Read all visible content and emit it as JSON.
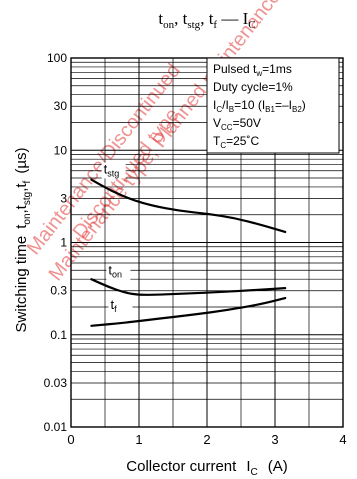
{
  "chart_data": {
    "type": "line",
    "title_parts": {
      "t": "t",
      "on": "on",
      "sep1": ", ",
      "stg": "stg",
      "sep2": ", ",
      "f": "f",
      "dash": " — I",
      "c": "C"
    },
    "xlabel_text": "Collector current",
    "xlabel_symbol": "I",
    "xlabel_sub": "C",
    "xlabel_unit": "(A)",
    "ylabel_text": "Switching time",
    "ylabel_symbol": "t",
    "ylabel_subs": [
      "on",
      "stg",
      "f"
    ],
    "ylabel_unit": "(µs)",
    "xlim": [
      0,
      4
    ],
    "ylim": [
      0.01,
      100
    ],
    "yscale": "log",
    "x_ticks": [
      {
        "v": 0,
        "label": "0"
      },
      {
        "v": 1,
        "label": "1"
      },
      {
        "v": 2,
        "label": "2"
      },
      {
        "v": 3,
        "label": "3"
      },
      {
        "v": 4,
        "label": "4"
      }
    ],
    "y_ticks": [
      {
        "v": 0.01,
        "label": "0.01"
      },
      {
        "v": 0.03,
        "label": "0.03"
      },
      {
        "v": 0.1,
        "label": "0.1"
      },
      {
        "v": 0.3,
        "label": "0.3"
      },
      {
        "v": 1,
        "label": "1"
      },
      {
        "v": 3,
        "label": "3"
      },
      {
        "v": 10,
        "label": "10"
      },
      {
        "v": 30,
        "label": "30"
      },
      {
        "v": 100,
        "label": "100"
      }
    ],
    "grid": true,
    "conditions": [
      {
        "text": "Pulsed t",
        "sub": "w",
        "after": "=1ms"
      },
      {
        "text": "Duty cycle=1%"
      },
      {
        "text": "I",
        "sub": "C",
        "after": "/I",
        "sub2": "B",
        "after2": "=10 (I",
        "sub3": "B1",
        "after3": "=–I",
        "sub4": "B2",
        "after4": ")"
      },
      {
        "text": "V",
        "sub": "CC",
        "after": "=50V"
      },
      {
        "text": "T",
        "sub": "C",
        "after": "=25˚C"
      }
    ],
    "series": [
      {
        "name": "t",
        "name_sub": "stg",
        "points": [
          [
            0.3,
            4.8
          ],
          [
            0.6,
            3.6
          ],
          [
            0.9,
            2.9
          ],
          [
            1.2,
            2.5
          ],
          [
            1.6,
            2.2
          ],
          [
            2.0,
            2.05
          ],
          [
            2.4,
            1.85
          ],
          [
            2.8,
            1.55
          ],
          [
            3.15,
            1.3
          ]
        ],
        "label_at": [
          0.48,
          5.6
        ]
      },
      {
        "name": "t",
        "name_sub": "on",
        "points": [
          [
            0.3,
            0.4
          ],
          [
            0.55,
            0.33
          ],
          [
            0.8,
            0.285
          ],
          [
            1.0,
            0.27
          ],
          [
            1.3,
            0.272
          ],
          [
            1.7,
            0.28
          ],
          [
            2.2,
            0.29
          ],
          [
            2.7,
            0.305
          ],
          [
            3.15,
            0.32
          ]
        ],
        "label_at": [
          0.55,
          0.45
        ]
      },
      {
        "name": "t",
        "name_sub": "f",
        "points": [
          [
            0.3,
            0.125
          ],
          [
            0.8,
            0.135
          ],
          [
            1.3,
            0.15
          ],
          [
            1.8,
            0.165
          ],
          [
            2.3,
            0.185
          ],
          [
            2.8,
            0.215
          ],
          [
            3.15,
            0.25
          ]
        ],
        "label_at": [
          0.58,
          0.19
        ]
      }
    ]
  },
  "watermark": {
    "lines": [
      "Maintenance/Discontinued",
      "Maintenance type, Planned maintenance",
      "Discontinued type"
    ]
  }
}
